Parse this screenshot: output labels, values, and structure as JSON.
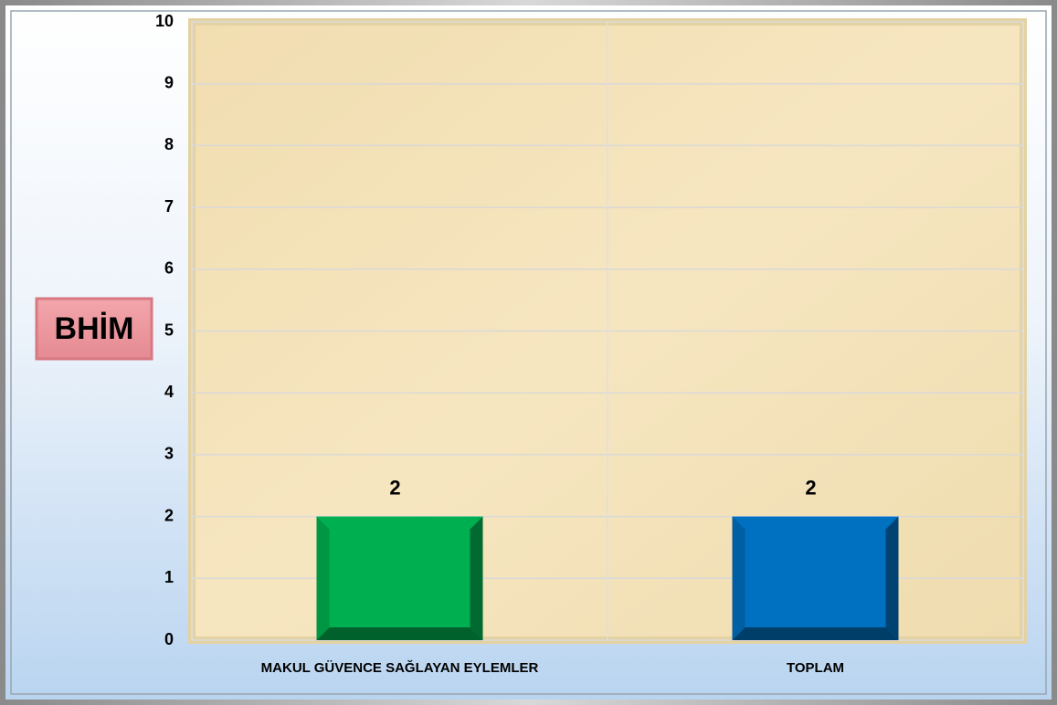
{
  "chart_data": {
    "type": "bar",
    "ylabel": "BHİM",
    "categories": [
      "MAKUL GÜVENCE SAĞLAYAN EYLEMLER",
      "TOPLAM"
    ],
    "values": [
      2,
      2
    ],
    "colors": [
      "#00b050",
      "#0070c0"
    ],
    "ylim": [
      0,
      10
    ],
    "yticks": [
      0,
      1,
      2,
      3,
      4,
      5,
      6,
      7,
      8,
      9,
      10
    ],
    "grid": true
  }
}
